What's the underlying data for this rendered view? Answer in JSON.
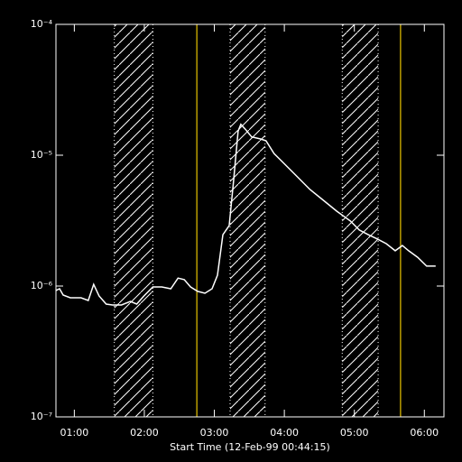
{
  "chart_data": {
    "type": "line",
    "x_label": "Start Time (12-Feb-99 00:44:15)",
    "x": [
      0.738,
      0.789,
      0.84,
      0.943,
      1.096,
      1.199,
      1.276,
      1.353,
      1.455,
      1.545,
      1.673,
      1.801,
      1.891,
      1.994,
      2.122,
      2.25,
      2.378,
      2.481,
      2.571,
      2.661,
      2.763,
      2.866,
      2.968,
      3.045,
      3.122,
      3.212,
      3.276,
      3.34,
      3.379,
      3.443,
      3.533,
      3.661,
      3.738,
      3.853,
      3.981,
      4.174,
      4.366,
      4.558,
      4.75,
      4.943,
      5.071,
      5.199,
      5.327,
      5.455,
      5.584,
      5.686,
      5.776,
      5.904,
      6.032,
      6.161
    ],
    "series": [
      {
        "color": "#ffffff",
        "values": [
          9.25e-07,
          9.53e-07,
          8.53e-07,
          8.13e-07,
          8.13e-07,
          7.76e-07,
          1.03e-06,
          8.4e-07,
          7.28e-07,
          7.16e-07,
          7.16e-07,
          7.64e-07,
          7.28e-07,
          8.4e-07,
          9.84e-07,
          9.84e-07,
          9.53e-07,
          1.15e-06,
          1.12e-06,
          9.84e-07,
          9.1e-07,
          8.81e-07,
          9.53e-07,
          1.21e-06,
          2.47e-06,
          2.9e-06,
          6.41e-06,
          1.53e-05,
          1.72e-05,
          1.58e-05,
          1.38e-05,
          1.33e-05,
          1.29e-05,
          1.03e-05,
          8.81e-06,
          6.94e-06,
          5.47e-06,
          4.52e-06,
          3.73e-06,
          3.14e-06,
          2.68e-06,
          2.47e-06,
          2.29e-06,
          2.11e-06,
          1.86e-06,
          2.04e-06,
          1.86e-06,
          1.66e-06,
          1.42e-06,
          1.42e-06
        ]
      }
    ],
    "log_y": true,
    "xlim": [
      0.7375,
      6.28
    ],
    "ylim": [
      1e-07,
      0.0001
    ],
    "xticks": [
      {
        "value": 1,
        "label": "01:00"
      },
      {
        "value": 2,
        "label": "02:00"
      },
      {
        "value": 3,
        "label": "03:00"
      },
      {
        "value": 4,
        "label": "04:00"
      },
      {
        "value": 5,
        "label": "05:00"
      },
      {
        "value": 6,
        "label": "06:00"
      }
    ],
    "yticks": [
      {
        "value": 1e-07,
        "label": "10⁻⁷"
      },
      {
        "value": 1e-06,
        "label": "10⁻⁶"
      },
      {
        "value": 1e-05,
        "label": "10⁻⁵"
      },
      {
        "value": 0.0001,
        "label": "10⁻⁴"
      }
    ],
    "hatched_intervals": [
      [
        1.571,
        2.122
      ],
      [
        3.225,
        3.725
      ],
      [
        4.827,
        5.34
      ]
    ],
    "marker_lines": {
      "color": "#e8c400",
      "x": [
        2.75,
        5.66
      ]
    }
  }
}
